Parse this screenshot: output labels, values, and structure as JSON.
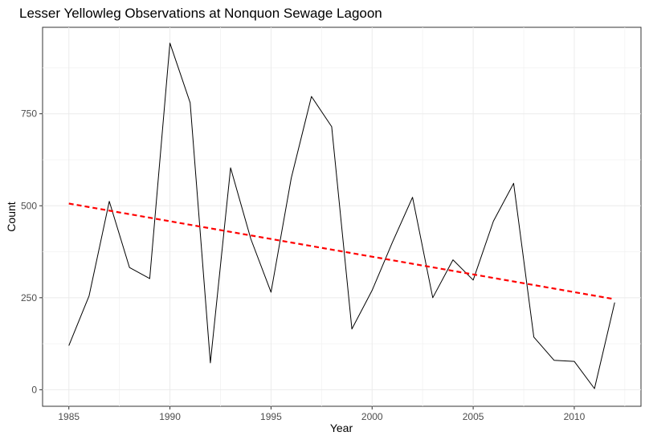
{
  "chart_data": {
    "type": "line",
    "title": "Lesser Yellowleg Observations at Nonquon Sewage Lagoon",
    "xlabel": "Year",
    "ylabel": "Count",
    "xlim": [
      1983.7,
      2013.3
    ],
    "ylim": [
      -45,
      985
    ],
    "x_ticks": [
      1985,
      1990,
      1995,
      2000,
      2005,
      2010
    ],
    "y_ticks": [
      0,
      250,
      500,
      750
    ],
    "grid": true,
    "series": [
      {
        "style": "solid",
        "color": "#000000",
        "x": [
          1985,
          1986,
          1987,
          1988,
          1989,
          1990,
          1991,
          1992,
          1993,
          1994,
          1995,
          1996,
          1997,
          1998,
          1999,
          2000,
          2001,
          2002,
          2003,
          2004,
          2005,
          2006,
          2007,
          2008,
          2009,
          2010,
          2011,
          2012
        ],
        "y": [
          120,
          255,
          512,
          332,
          302,
          942,
          780,
          73,
          603,
          410,
          265,
          575,
          797,
          715,
          165,
          270,
          400,
          523,
          250,
          353,
          298,
          458,
          561,
          143,
          80,
          77,
          3,
          237
        ]
      },
      {
        "style": "dashed",
        "color": "#ff0000",
        "x": [
          1985,
          2012
        ],
        "y": [
          506,
          246
        ]
      }
    ]
  }
}
